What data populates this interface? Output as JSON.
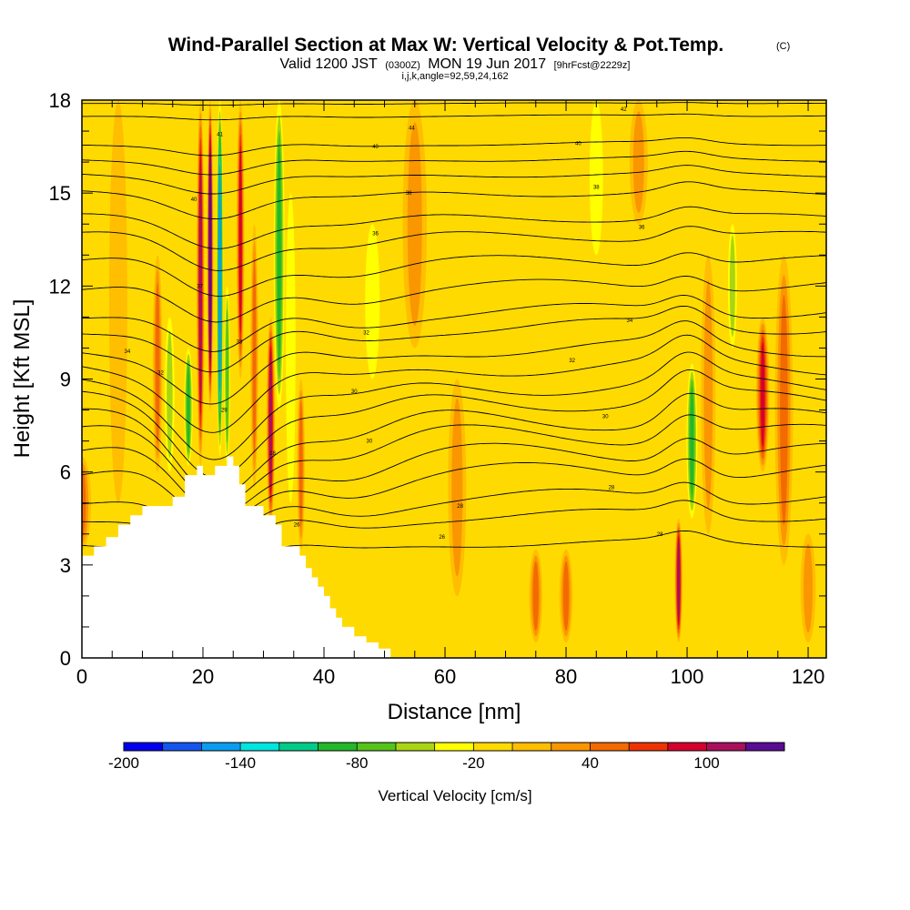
{
  "title": {
    "main": "Wind-Parallel Section at Max W: Vertical Velocity & Pot.Temp.",
    "copyright": "(C)",
    "valid_prefix": "Valid 1200 JST",
    "valid_zulu": "(0300Z)",
    "valid_date": "MON 19 Jun 2017",
    "forecast": "[9hrFcst@2229z]",
    "indices": "i,j,k,angle=92,59,24,162"
  },
  "chart_data": {
    "type": "heatmap",
    "xlabel": "Distance [nm]",
    "ylabel": "Height [Kft MSL]",
    "xlim": [
      0,
      123
    ],
    "ylim": [
      0,
      18
    ],
    "x_ticks": [
      0,
      20,
      40,
      60,
      80,
      100,
      120
    ],
    "y_ticks": [
      0,
      3,
      6,
      9,
      12,
      15,
      18
    ],
    "colorbar": {
      "title": "Vertical Velocity [cm/s]",
      "tick_labels": [
        "-200",
        "-140",
        "-80",
        "-20",
        "40",
        "100"
      ],
      "tick_values": [
        -200,
        -140,
        -80,
        -20,
        40,
        100
      ],
      "min": -200,
      "max": 130,
      "step": 20,
      "colors": [
        "#0000ee",
        "#1455ee",
        "#0a9cf0",
        "#00e5e0",
        "#00cc88",
        "#22b82a",
        "#55c41a",
        "#aad414",
        "#ffff00",
        "#ffda00",
        "#ffbe00",
        "#fa9600",
        "#f26a00",
        "#ee3300",
        "#d4002e",
        "#a8105c",
        "#5a0c94"
      ]
    },
    "terrain": [
      {
        "x": 0,
        "z": 3.3
      },
      {
        "x": 2,
        "z": 3.6
      },
      {
        "x": 4,
        "z": 3.9
      },
      {
        "x": 6,
        "z": 4.3
      },
      {
        "x": 8,
        "z": 4.6
      },
      {
        "x": 10,
        "z": 4.9
      },
      {
        "x": 13,
        "z": 4.9
      },
      {
        "x": 15,
        "z": 5.2
      },
      {
        "x": 17,
        "z": 5.9
      },
      {
        "x": 19,
        "z": 6.2
      },
      {
        "x": 20,
        "z": 5.9
      },
      {
        "x": 22,
        "z": 6.2
      },
      {
        "x": 24,
        "z": 6.5
      },
      {
        "x": 25,
        "z": 6.2
      },
      {
        "x": 26,
        "z": 5.6
      },
      {
        "x": 27,
        "z": 4.9
      },
      {
        "x": 30,
        "z": 4.6
      },
      {
        "x": 32,
        "z": 4.3
      },
      {
        "x": 33,
        "z": 3.6
      },
      {
        "x": 35,
        "z": 3.6
      },
      {
        "x": 36,
        "z": 3.3
      },
      {
        "x": 37,
        "z": 2.9
      },
      {
        "x": 38,
        "z": 2.6
      },
      {
        "x": 39,
        "z": 2.3
      },
      {
        "x": 40,
        "z": 2.0
      },
      {
        "x": 41,
        "z": 1.6
      },
      {
        "x": 42,
        "z": 1.3
      },
      {
        "x": 43,
        "z": 1.0
      },
      {
        "x": 45,
        "z": 0.7
      },
      {
        "x": 47,
        "z": 0.5
      },
      {
        "x": 49,
        "z": 0.3
      },
      {
        "x": 51,
        "z": 0.3
      },
      {
        "x": 51,
        "z": 0.0
      }
    ],
    "velocity_columns": [
      {
        "x": 0,
        "level": 3,
        "width": 3,
        "zmin": 3.5,
        "zmax": 6.5
      },
      {
        "x": 6,
        "level": 1,
        "width": 3,
        "zmin": 5,
        "zmax": 18
      },
      {
        "x": 12.5,
        "level": 3,
        "width": 1.6,
        "zmin": 6,
        "zmax": 13
      },
      {
        "x": 14.5,
        "level": -2,
        "width": 1.6,
        "zmin": 6,
        "zmax": 11
      },
      {
        "x": 17.6,
        "level": -4,
        "width": 1.4,
        "zmin": 6.2,
        "zmax": 10
      },
      {
        "x": 19.6,
        "level": 6,
        "width": 1.3,
        "zmin": 6.2,
        "zmax": 18
      },
      {
        "x": 21.2,
        "level": 8,
        "width": 1.0,
        "zmin": 8,
        "zmax": 18
      },
      {
        "x": 22.8,
        "level": -7,
        "width": 1.1,
        "zmin": 6.5,
        "zmax": 18
      },
      {
        "x": 24.0,
        "level": -3,
        "width": 1.0,
        "zmin": 6.2,
        "zmax": 12
      },
      {
        "x": 26.2,
        "level": 5,
        "width": 1.3,
        "zmin": 9,
        "zmax": 18
      },
      {
        "x": 28.5,
        "level": 3,
        "width": 1.3,
        "zmin": 5.5,
        "zmax": 14
      },
      {
        "x": 31.2,
        "level": 6,
        "width": 1.4,
        "zmin": 4.3,
        "zmax": 11
      },
      {
        "x": 32.6,
        "level": -4,
        "width": 1.8,
        "zmin": 8,
        "zmax": 18
      },
      {
        "x": 34.5,
        "level": -1,
        "width": 1.6,
        "zmin": 5,
        "zmax": 15
      },
      {
        "x": 36.2,
        "level": 3,
        "width": 1.3,
        "zmin": 3.5,
        "zmax": 9
      },
      {
        "x": 48,
        "level": -1,
        "width": 2.4,
        "zmin": 9,
        "zmax": 14
      },
      {
        "x": 55,
        "level": 2,
        "width": 4,
        "zmin": 10,
        "zmax": 18
      },
      {
        "x": 62,
        "level": 2,
        "width": 3,
        "zmin": 2,
        "zmax": 9
      },
      {
        "x": 75,
        "level": 3,
        "width": 2.2,
        "zmin": 0.5,
        "zmax": 3.5
      },
      {
        "x": 80,
        "level": 3,
        "width": 2.2,
        "zmin": 0.5,
        "zmax": 3.5
      },
      {
        "x": 85,
        "level": -1,
        "width": 2.2,
        "zmin": 13,
        "zmax": 18
      },
      {
        "x": 92,
        "level": 2,
        "width": 3,
        "zmin": 14,
        "zmax": 18
      },
      {
        "x": 98.6,
        "level": 6,
        "width": 1.3,
        "zmin": 0.5,
        "zmax": 4.5
      },
      {
        "x": 100.8,
        "level": -4,
        "width": 1.8,
        "zmin": 4.5,
        "zmax": 9.5
      },
      {
        "x": 103.5,
        "level": 2,
        "width": 2.4,
        "zmin": 4,
        "zmax": 13
      },
      {
        "x": 107.5,
        "level": -2,
        "width": 1.5,
        "zmin": 10,
        "zmax": 14
      },
      {
        "x": 112.5,
        "level": 5,
        "width": 2.2,
        "zmin": 6,
        "zmax": 11
      },
      {
        "x": 116,
        "level": 3,
        "width": 3,
        "zmin": 3,
        "zmax": 13
      },
      {
        "x": 120,
        "level": 2,
        "width": 2.5,
        "zmin": 0.5,
        "zmax": 4
      }
    ],
    "theta_contours": [
      {
        "label": "44",
        "z0": 17.9,
        "amp": 0.05
      },
      {
        "label": "42",
        "z0": 17.5,
        "amp": 0.1
      },
      {
        "label": "40",
        "z0": 16.6,
        "amp": 0.25
      },
      {
        "label": "39",
        "z0": 16.1,
        "amp": 0.3
      },
      {
        "label": "38",
        "z0": 15.6,
        "amp": 0.35
      },
      {
        "label": "37",
        "z0": 15.0,
        "amp": 0.45
      },
      {
        "label": "36",
        "z0": 14.2,
        "amp": 0.55
      },
      {
        "label": "35",
        "z0": 13.6,
        "amp": 0.65
      },
      {
        "label": "34.5",
        "z0": 12.8,
        "amp": 0.75
      },
      {
        "label": "34",
        "z0": 12.0,
        "amp": 0.85
      },
      {
        "label": "33.5",
        "z0": 11.2,
        "amp": 0.95
      },
      {
        "label": "33",
        "z0": 10.7,
        "amp": 1.0
      },
      {
        "label": "32.5",
        "z0": 10.0,
        "amp": 1.1
      },
      {
        "label": "32",
        "z0": 9.4,
        "amp": 1.2
      },
      {
        "label": "31",
        "z0": 8.8,
        "amp": 1.3
      },
      {
        "label": "30.5",
        "z0": 8.3,
        "amp": 1.35
      },
      {
        "label": "30",
        "z0": 7.7,
        "amp": 1.4
      },
      {
        "label": "29.5",
        "z0": 7.2,
        "amp": 1.35
      },
      {
        "label": "29",
        "z0": 6.6,
        "amp": 1.3
      },
      {
        "label": "28.5",
        "z0": 6.0,
        "amp": 1.2
      },
      {
        "label": "28",
        "z0": 5.2,
        "amp": 1.0
      },
      {
        "label": "27",
        "z0": 4.6,
        "amp": 0.8
      },
      {
        "label": "26",
        "z0": 3.7,
        "amp": 0.5
      }
    ],
    "contour_labels": [
      {
        "text": "44",
        "x": 54.5,
        "z": 17.1
      },
      {
        "text": "42",
        "x": 89.5,
        "z": 17.7
      },
      {
        "text": "40",
        "x": 48.5,
        "z": 16.5
      },
      {
        "text": "40",
        "x": 82,
        "z": 16.6
      },
      {
        "text": "41",
        "x": 22.8,
        "z": 16.9
      },
      {
        "text": "38",
        "x": 54,
        "z": 15.0
      },
      {
        "text": "38",
        "x": 85,
        "z": 15.2
      },
      {
        "text": "36",
        "x": 48.5,
        "z": 13.7
      },
      {
        "text": "36",
        "x": 92.5,
        "z": 13.9
      },
      {
        "text": "40",
        "x": 18.5,
        "z": 14.8
      },
      {
        "text": "37",
        "x": 19.5,
        "z": 12.0
      },
      {
        "text": "34",
        "x": 7.5,
        "z": 9.9
      },
      {
        "text": "34",
        "x": 90.5,
        "z": 10.9
      },
      {
        "text": "32",
        "x": 47,
        "z": 10.5
      },
      {
        "text": "33",
        "x": 26,
        "z": 10.2
      },
      {
        "text": "32",
        "x": 81,
        "z": 9.6
      },
      {
        "text": "32",
        "x": 13,
        "z": 9.2
      },
      {
        "text": "30",
        "x": 45,
        "z": 8.6
      },
      {
        "text": "30",
        "x": 86.5,
        "z": 7.8
      },
      {
        "text": "29",
        "x": 23.5,
        "z": 8.0
      },
      {
        "text": "30",
        "x": 47.5,
        "z": 7.0
      },
      {
        "text": "28",
        "x": 31.5,
        "z": 6.6
      },
      {
        "text": "28",
        "x": 87.5,
        "z": 5.5
      },
      {
        "text": "28",
        "x": 62.5,
        "z": 4.9
      },
      {
        "text": "26",
        "x": 59.5,
        "z": 3.9
      },
      {
        "text": "28",
        "x": 95.5,
        "z": 4.0
      },
      {
        "text": "26",
        "x": 35.5,
        "z": 4.3
      }
    ]
  }
}
